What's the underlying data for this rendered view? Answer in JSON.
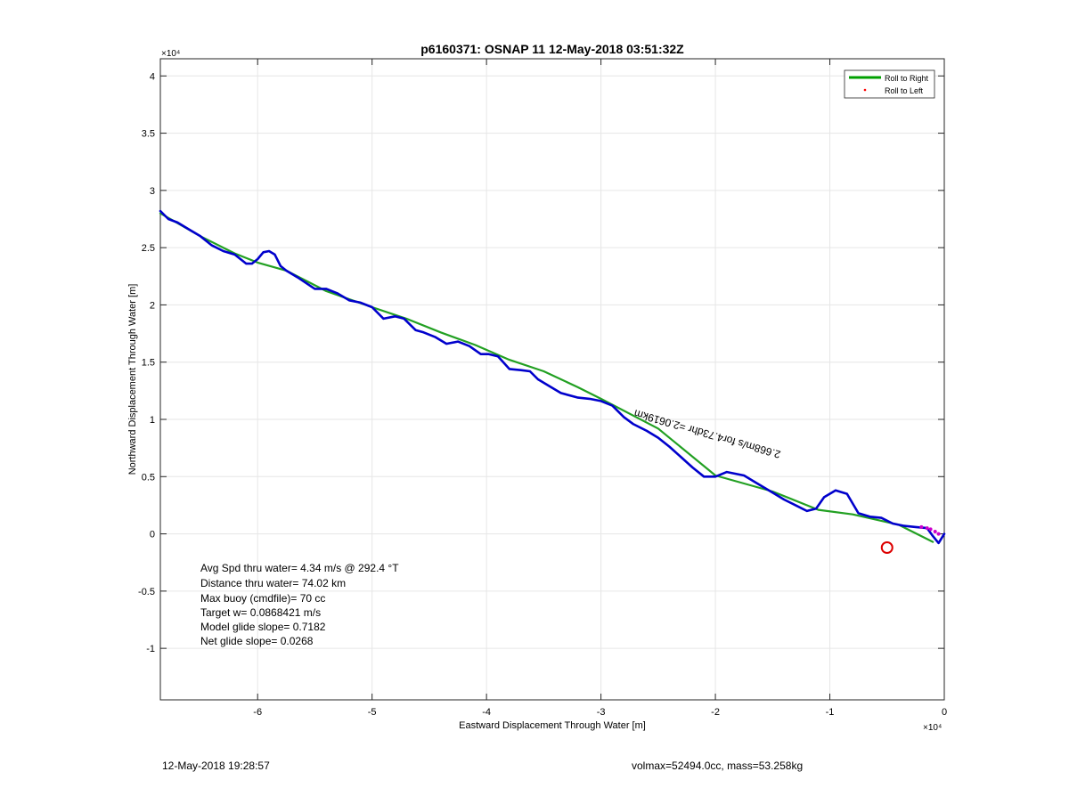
{
  "chart_data": {
    "type": "line",
    "title": "p6160371: OSNAP 11 12-May-2018 03:51:32Z",
    "xlabel": "Eastward Displacement Through Water [m]",
    "ylabel": "Northward Displacement Through Water [m]",
    "x_exponent_label": "×10⁴",
    "y_exponent_label": "×10⁴",
    "xlim": [
      -6.85,
      0
    ],
    "ylim": [
      -1.45,
      4.15
    ],
    "xticks": [
      -6,
      -5,
      -4,
      -3,
      -2,
      -1,
      0
    ],
    "xtick_labels": [
      "-6",
      "-5",
      "-4",
      "-3",
      "-2",
      "-1",
      "0"
    ],
    "yticks": [
      -1,
      -0.5,
      0,
      0.5,
      1,
      1.5,
      2,
      2.5,
      3,
      3.5,
      4
    ],
    "ytick_labels": [
      "-1",
      "-0.5",
      "0",
      "0.5",
      "1",
      "1.5",
      "2",
      "2.5",
      "3",
      "3.5",
      "4"
    ],
    "grid": true,
    "legend_position": "top-right",
    "legend": [
      {
        "label": "Roll to Right",
        "color": "#00a000",
        "style": "line"
      },
      {
        "label": "Roll to Left",
        "color": "#ff0000",
        "style": "dot"
      }
    ],
    "series": [
      {
        "name": "Roll to Right",
        "color": "#22a022",
        "x": [
          -6.85,
          -6.5,
          -6.2,
          -6.0,
          -5.75,
          -5.4,
          -5.0,
          -4.7,
          -4.4,
          -4.1,
          -3.8,
          -3.5,
          -3.2,
          -3.0,
          -2.5,
          -2.0,
          -1.5,
          -1.1,
          -0.8,
          -0.4,
          -0.1
        ],
        "y": [
          2.8,
          2.6,
          2.45,
          2.37,
          2.3,
          2.12,
          1.98,
          1.88,
          1.76,
          1.65,
          1.52,
          1.42,
          1.28,
          1.18,
          0.92,
          0.51,
          0.37,
          0.21,
          0.17,
          0.08,
          -0.07
        ]
      },
      {
        "name": "",
        "color": "#0000cc",
        "x": [
          -6.85,
          -6.78,
          -6.7,
          -6.6,
          -6.5,
          -6.4,
          -6.3,
          -6.2,
          -6.1,
          -6.05,
          -6.0,
          -5.95,
          -5.9,
          -5.85,
          -5.8,
          -5.75,
          -5.65,
          -5.5,
          -5.4,
          -5.3,
          -5.2,
          -5.1,
          -5.0,
          -4.9,
          -4.8,
          -4.72,
          -4.62,
          -4.55,
          -4.45,
          -4.35,
          -4.25,
          -4.15,
          -4.05,
          -3.98,
          -3.9,
          -3.8,
          -3.7,
          -3.62,
          -3.55,
          -3.45,
          -3.35,
          -3.2,
          -3.1,
          -3.0,
          -2.9,
          -2.8,
          -2.72,
          -2.6,
          -2.5,
          -2.4,
          -2.3,
          -2.2,
          -2.1,
          -2.0,
          -1.9,
          -1.75,
          -1.65,
          -1.5,
          -1.4,
          -1.3,
          -1.2,
          -1.12,
          -1.05,
          -0.95,
          -0.85,
          -0.75,
          -0.65,
          -0.55,
          -0.45,
          -0.35,
          -0.25,
          -0.15,
          -0.1,
          -0.05,
          0.0
        ],
        "y": [
          2.82,
          2.75,
          2.72,
          2.66,
          2.6,
          2.52,
          2.47,
          2.44,
          2.36,
          2.36,
          2.4,
          2.46,
          2.47,
          2.44,
          2.34,
          2.3,
          2.24,
          2.14,
          2.14,
          2.1,
          2.04,
          2.02,
          1.98,
          1.88,
          1.9,
          1.88,
          1.78,
          1.76,
          1.72,
          1.66,
          1.68,
          1.64,
          1.57,
          1.57,
          1.55,
          1.44,
          1.43,
          1.42,
          1.35,
          1.29,
          1.23,
          1.19,
          1.18,
          1.16,
          1.12,
          1.02,
          0.96,
          0.9,
          0.84,
          0.76,
          0.67,
          0.58,
          0.5,
          0.5,
          0.54,
          0.51,
          0.45,
          0.36,
          0.3,
          0.25,
          0.2,
          0.22,
          0.32,
          0.38,
          0.35,
          0.18,
          0.15,
          0.14,
          0.09,
          0.07,
          0.06,
          0.05,
          -0.02,
          -0.08,
          0.0
        ]
      }
    ],
    "red_circle_marker": {
      "x": -0.5,
      "y": -0.12
    },
    "trail_label": "2.668m/s for4.73dhr =2.0619km",
    "annotations": [
      "Avg Spd thru water=  4.34 m/s @ 292.4 °T",
      "Distance thru water= 74.02 km",
      "Max buoy (cmdfile)= 70 cc",
      "Target w= 0.0868421 m/s",
      "Model glide slope= 0.7182",
      "Net glide slope= 0.0268"
    ]
  },
  "footer": {
    "timestamp": "12-May-2018 19:28:57",
    "volmax_mass": "volmax=52494.0cc, mass=53.258kg"
  }
}
